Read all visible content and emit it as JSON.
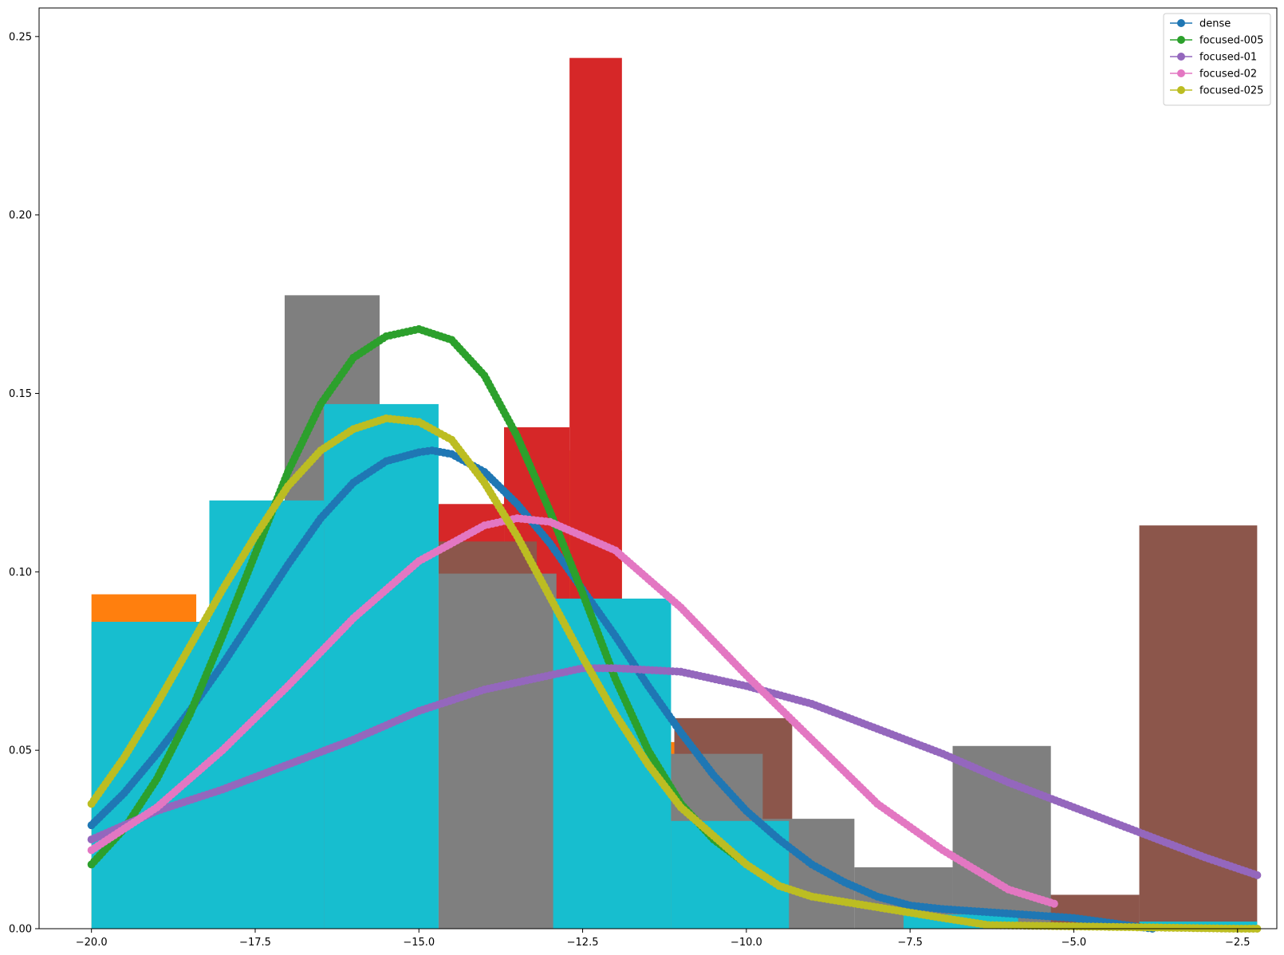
{
  "chart_data": {
    "type": "line",
    "title": "",
    "xlabel": "",
    "ylabel": "",
    "xlim": [
      -20.8,
      -1.9
    ],
    "ylim": [
      0,
      0.258
    ],
    "grid": false,
    "legend_position": "top-right",
    "x_ticks": [
      -20.0,
      -17.5,
      -15.0,
      -12.5,
      -10.0,
      -7.5,
      -5.0,
      -2.5
    ],
    "x_tick_labels": [
      "−20.0",
      "−17.5",
      "−15.0",
      "−12.5",
      "−10.0",
      "−7.5",
      "−5.0",
      "−2.5"
    ],
    "y_ticks": [
      0.0,
      0.05,
      0.1,
      0.15,
      0.2,
      0.25
    ],
    "y_tick_labels": [
      "0.00",
      "0.05",
      "0.10",
      "0.15",
      "0.20",
      "0.25"
    ],
    "histograms": [
      {
        "color": "#ff7f0e",
        "bins": [
          [
            -20.0,
            -18.4,
            0.0937
          ],
          [
            -18.4,
            -16.8,
            0.0
          ],
          [
            -16.8,
            -15.2,
            0.0
          ],
          [
            -15.2,
            -13.6,
            0.0
          ],
          [
            -13.6,
            -11.9,
            0.134
          ],
          [
            -11.9,
            -10.3,
            0.0523
          ]
        ]
      },
      {
        "color": "#d62728",
        "bins": [
          [
            -14.7,
            -13.7,
            0.119
          ],
          [
            -13.7,
            -12.7,
            0.1405
          ],
          [
            -12.7,
            -11.9,
            0.244
          ]
        ]
      },
      {
        "color": "#8c564b",
        "bins": [
          [
            -14.7,
            -13.2,
            0.1085
          ],
          [
            -13.2,
            -11.1,
            0.0
          ],
          [
            -11.1,
            -9.3,
            0.059
          ],
          [
            -9.3,
            -5.4,
            0.0
          ],
          [
            -5.4,
            -4.0,
            0.0095
          ],
          [
            -4.0,
            -2.2,
            0.113
          ]
        ]
      },
      {
        "color": "#7f7f7f",
        "bins": [
          [
            -17.05,
            -15.6,
            0.1775
          ],
          [
            -15.6,
            -14.2,
            0.0
          ],
          [
            -14.7,
            -12.9,
            0.0995
          ],
          [
            -11.15,
            -9.75,
            0.049
          ],
          [
            -9.75,
            -8.35,
            0.0308
          ],
          [
            -8.35,
            -6.85,
            0.0172
          ],
          [
            -6.85,
            -5.35,
            0.0512
          ]
        ]
      },
      {
        "color": "#17becf",
        "bins": [
          [
            -20.0,
            -18.2,
            0.086
          ],
          [
            -18.2,
            -16.45,
            0.12
          ],
          [
            -16.45,
            -14.7,
            0.147
          ],
          [
            -14.7,
            -12.95,
            0.0
          ],
          [
            -12.95,
            -11.15,
            0.0925
          ],
          [
            -11.15,
            -9.35,
            0.0302
          ],
          [
            -9.35,
            -7.6,
            0.0
          ],
          [
            -7.6,
            -5.85,
            0.004
          ],
          [
            -5.85,
            -4.0,
            0.0
          ],
          [
            -4.0,
            -2.2,
            0.002
          ]
        ]
      }
    ],
    "series": [
      {
        "name": "dense",
        "color": "#1f77b4",
        "x": [
          -20.0,
          -19.5,
          -19.0,
          -18.5,
          -18.0,
          -17.5,
          -17.0,
          -16.5,
          -16.0,
          -15.5,
          -15.0,
          -14.8,
          -14.5,
          -14.0,
          -13.5,
          -13.0,
          -12.5,
          -12.0,
          -11.5,
          -11.0,
          -10.5,
          -10.0,
          -9.5,
          -9.0,
          -8.5,
          -8.0,
          -7.5,
          -7.0,
          -5.0,
          -4.0,
          -3.8
        ],
        "y": [
          0.029,
          0.038,
          0.049,
          0.061,
          0.074,
          0.088,
          0.102,
          0.115,
          0.125,
          0.131,
          0.1335,
          0.134,
          0.133,
          0.128,
          0.119,
          0.108,
          0.095,
          0.082,
          0.068,
          0.055,
          0.043,
          0.033,
          0.025,
          0.018,
          0.013,
          0.009,
          0.0065,
          0.0055,
          0.003,
          0.0005,
          0.0
        ]
      },
      {
        "name": "focused-005",
        "color": "#2ca02c",
        "x": [
          -20.0,
          -19.5,
          -19.0,
          -18.5,
          -18.0,
          -17.5,
          -17.0,
          -16.5,
          -16.0,
          -15.5,
          -15.0,
          -14.5,
          -14.0,
          -13.5,
          -13.0,
          -12.5,
          -12.0,
          -11.5,
          -11.0,
          -10.5,
          -10.1
        ],
        "y": [
          0.018,
          0.028,
          0.042,
          0.06,
          0.082,
          0.105,
          0.128,
          0.147,
          0.16,
          0.166,
          0.168,
          0.165,
          0.155,
          0.138,
          0.117,
          0.094,
          0.07,
          0.05,
          0.035,
          0.025,
          0.0195
        ]
      },
      {
        "name": "focused-01",
        "color": "#9467bd",
        "x": [
          -20.0,
          -19.0,
          -18.0,
          -17.0,
          -16.0,
          -15.0,
          -14.0,
          -13.0,
          -12.5,
          -12.0,
          -11.0,
          -10.0,
          -9.0,
          -8.0,
          -7.0,
          -6.0,
          -5.0,
          -4.0,
          -3.0,
          -2.2
        ],
        "y": [
          0.025,
          0.033,
          0.039,
          0.046,
          0.053,
          0.061,
          0.067,
          0.071,
          0.073,
          0.073,
          0.072,
          0.068,
          0.063,
          0.056,
          0.049,
          0.041,
          0.034,
          0.027,
          0.02,
          0.015
        ]
      },
      {
        "name": "focused-02",
        "color": "#e377c2",
        "x": [
          -20.0,
          -19.0,
          -18.0,
          -17.0,
          -16.0,
          -15.0,
          -14.0,
          -13.5,
          -13.0,
          -12.0,
          -11.0,
          -10.0,
          -9.0,
          -8.0,
          -7.0,
          -6.0,
          -5.3
        ],
        "y": [
          0.022,
          0.034,
          0.05,
          0.068,
          0.087,
          0.103,
          0.113,
          0.115,
          0.114,
          0.106,
          0.09,
          0.071,
          0.053,
          0.035,
          0.022,
          0.011,
          0.007
        ]
      },
      {
        "name": "focused-025",
        "color": "#bcbd22",
        "x": [
          -20.0,
          -19.5,
          -19.0,
          -18.5,
          -18.0,
          -17.5,
          -17.0,
          -16.5,
          -16.0,
          -15.5,
          -15.0,
          -14.5,
          -14.0,
          -13.5,
          -13.0,
          -12.5,
          -12.0,
          -11.5,
          -11.0,
          -10.5,
          -10.0,
          -9.5,
          -9.0,
          -8.0,
          -7.0,
          -6.3,
          -2.5,
          -2.2
        ],
        "y": [
          0.035,
          0.048,
          0.063,
          0.079,
          0.095,
          0.11,
          0.124,
          0.134,
          0.14,
          0.143,
          0.142,
          0.137,
          0.125,
          0.11,
          0.093,
          0.076,
          0.06,
          0.046,
          0.034,
          0.026,
          0.018,
          0.012,
          0.009,
          0.006,
          0.003,
          0.001,
          0.0,
          0.0
        ]
      }
    ]
  }
}
